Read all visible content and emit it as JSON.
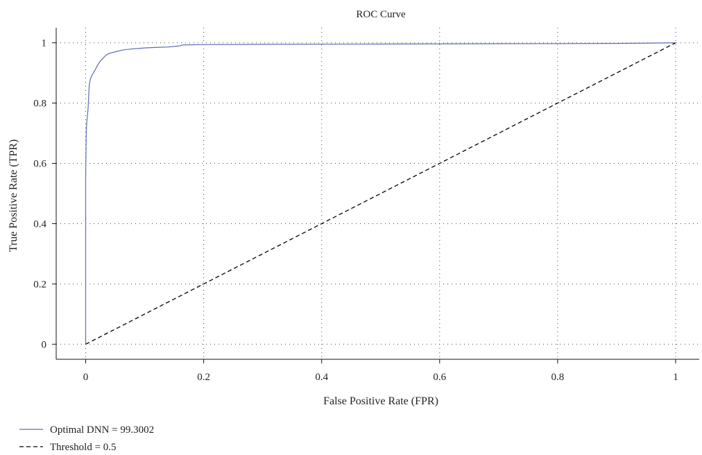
{
  "chart_data": {
    "type": "line",
    "title": "ROC Curve",
    "xlabel": "False Positive Rate (FPR)",
    "ylabel": "True Positive Rate (TPR)",
    "xlim": [
      -0.05,
      1.04
    ],
    "ylim": [
      -0.05,
      1.05
    ],
    "xticks": [
      0,
      0.2,
      0.4,
      0.6,
      0.8,
      1
    ],
    "yticks": [
      0,
      0.2,
      0.4,
      0.6,
      0.8,
      1
    ],
    "xtick_labels": [
      "0",
      "0.2",
      "0.4",
      "0.6",
      "0.8",
      "1"
    ],
    "ytick_labels": [
      "0",
      "0.2",
      "0.4",
      "0.6",
      "0.8",
      "1"
    ],
    "grid": true,
    "legend_position": "bottom-left",
    "series": [
      {
        "name": "Optimal DNN = 99.3002",
        "style": "solid",
        "color": "#5b6bb5",
        "x": [
          0,
          0,
          0.001,
          0.002,
          0.003,
          0.004,
          0.005,
          0.006,
          0.008,
          0.01,
          0.013,
          0.016,
          0.02,
          0.025,
          0.03,
          0.035,
          0.04,
          0.05,
          0.06,
          0.07,
          0.08,
          0.1,
          0.12,
          0.14,
          0.16,
          0.165,
          0.2,
          0.3,
          0.5,
          0.7,
          0.9,
          1
        ],
        "y": [
          0,
          0.55,
          0.71,
          0.74,
          0.76,
          0.78,
          0.82,
          0.86,
          0.88,
          0.89,
          0.9,
          0.91,
          0.925,
          0.94,
          0.95,
          0.96,
          0.965,
          0.97,
          0.975,
          0.978,
          0.98,
          0.983,
          0.985,
          0.986,
          0.99,
          0.993,
          0.994,
          0.995,
          0.996,
          0.997,
          0.998,
          1
        ]
      },
      {
        "name": "Threshold = 0.5",
        "style": "dashed",
        "color": "#000000",
        "x": [
          0,
          1
        ],
        "y": [
          0,
          1
        ]
      }
    ]
  }
}
